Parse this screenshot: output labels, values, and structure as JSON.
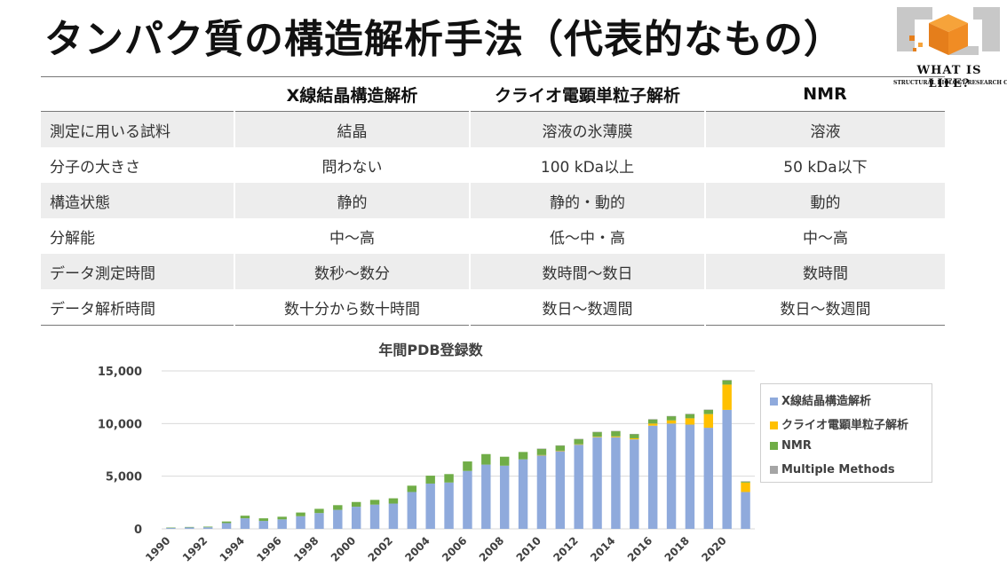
{
  "title": "タンパク質の構造解析手法（代表的なもの）",
  "logo": {
    "line1": "WHAT IS LIFE?",
    "line2": "STRUCTURAL BIOLOGY RESEARCH CENTER"
  },
  "table": {
    "headers": [
      "",
      "X線結晶構造解析",
      "クライオ電顕単粒子解析",
      "NMR"
    ],
    "rows": [
      [
        "測定に用いる試料",
        "結晶",
        "溶液の氷薄膜",
        "溶液"
      ],
      [
        "分子の大きさ",
        "問わない",
        "100 kDa以上",
        "50 kDa以下"
      ],
      [
        "構造状態",
        "静的",
        "静的・動的",
        "動的"
      ],
      [
        "分解能",
        "中～高",
        "低～中・高",
        "中～高"
      ],
      [
        "データ測定時間",
        "数秒～数分",
        "数時間～数日",
        "数時間"
      ],
      [
        "データ解析時間",
        "数十分から数十時間",
        "数日～数週間",
        "数日～数週間"
      ]
    ]
  },
  "chart_data": {
    "type": "bar",
    "stacked": true,
    "title": "年間PDB登録数",
    "xlabel": "",
    "ylabel": "",
    "ylim": [
      0,
      15000
    ],
    "yticks": [
      0,
      5000,
      10000,
      15000
    ],
    "ytick_labels": [
      "0",
      "5,000",
      "10,000",
      "15,000"
    ],
    "grid": true,
    "legend_position": "right",
    "categories": [
      "1990",
      "1991",
      "1992",
      "1993",
      "1994",
      "1995",
      "1996",
      "1997",
      "1998",
      "1999",
      "2000",
      "2001",
      "2002",
      "2003",
      "2004",
      "2005",
      "2006",
      "2007",
      "2008",
      "2009",
      "2010",
      "2011",
      "2012",
      "2013",
      "2014",
      "2015",
      "2016",
      "2017",
      "2018",
      "2019",
      "2020",
      "2021"
    ],
    "xtick_labels": [
      "1990",
      "",
      "1992",
      "",
      "1994",
      "",
      "1996",
      "",
      "1998",
      "",
      "2000",
      "",
      "2002",
      "",
      "2004",
      "",
      "2006",
      "",
      "2008",
      "",
      "2010",
      "",
      "2012",
      "",
      "2014",
      "",
      "2016",
      "",
      "2018",
      "",
      "2020",
      ""
    ],
    "series": [
      {
        "name": "X線結晶構造解析",
        "color": "#8faadc",
        "values": [
          100,
          150,
          150,
          550,
          1000,
          750,
          900,
          1200,
          1500,
          1800,
          2100,
          2300,
          2400,
          3500,
          4300,
          4400,
          5500,
          6100,
          6000,
          6600,
          7000,
          7400,
          8000,
          8700,
          8700,
          8500,
          9800,
          10000,
          9900,
          9600,
          11300,
          3500
        ]
      },
      {
        "name": "クライオ電顕単粒子解析",
        "color": "#ffc000",
        "values": [
          0,
          0,
          0,
          0,
          0,
          0,
          0,
          0,
          0,
          0,
          0,
          0,
          0,
          0,
          0,
          0,
          0,
          0,
          0,
          0,
          10,
          20,
          30,
          50,
          80,
          100,
          200,
          300,
          600,
          1300,
          2400,
          900
        ]
      },
      {
        "name": "NMR",
        "color": "#70ad47",
        "values": [
          20,
          30,
          60,
          150,
          250,
          250,
          250,
          350,
          400,
          450,
          450,
          450,
          500,
          600,
          750,
          800,
          900,
          1000,
          850,
          700,
          600,
          500,
          500,
          450,
          500,
          400,
          400,
          400,
          400,
          400,
          400,
          100
        ]
      },
      {
        "name": "Multiple Methods",
        "color": "#a5a5a5",
        "values": [
          0,
          0,
          0,
          0,
          0,
          0,
          0,
          0,
          0,
          0,
          0,
          0,
          0,
          0,
          0,
          0,
          0,
          0,
          0,
          0,
          10,
          10,
          10,
          10,
          20,
          20,
          20,
          20,
          30,
          30,
          50,
          20
        ]
      }
    ]
  }
}
